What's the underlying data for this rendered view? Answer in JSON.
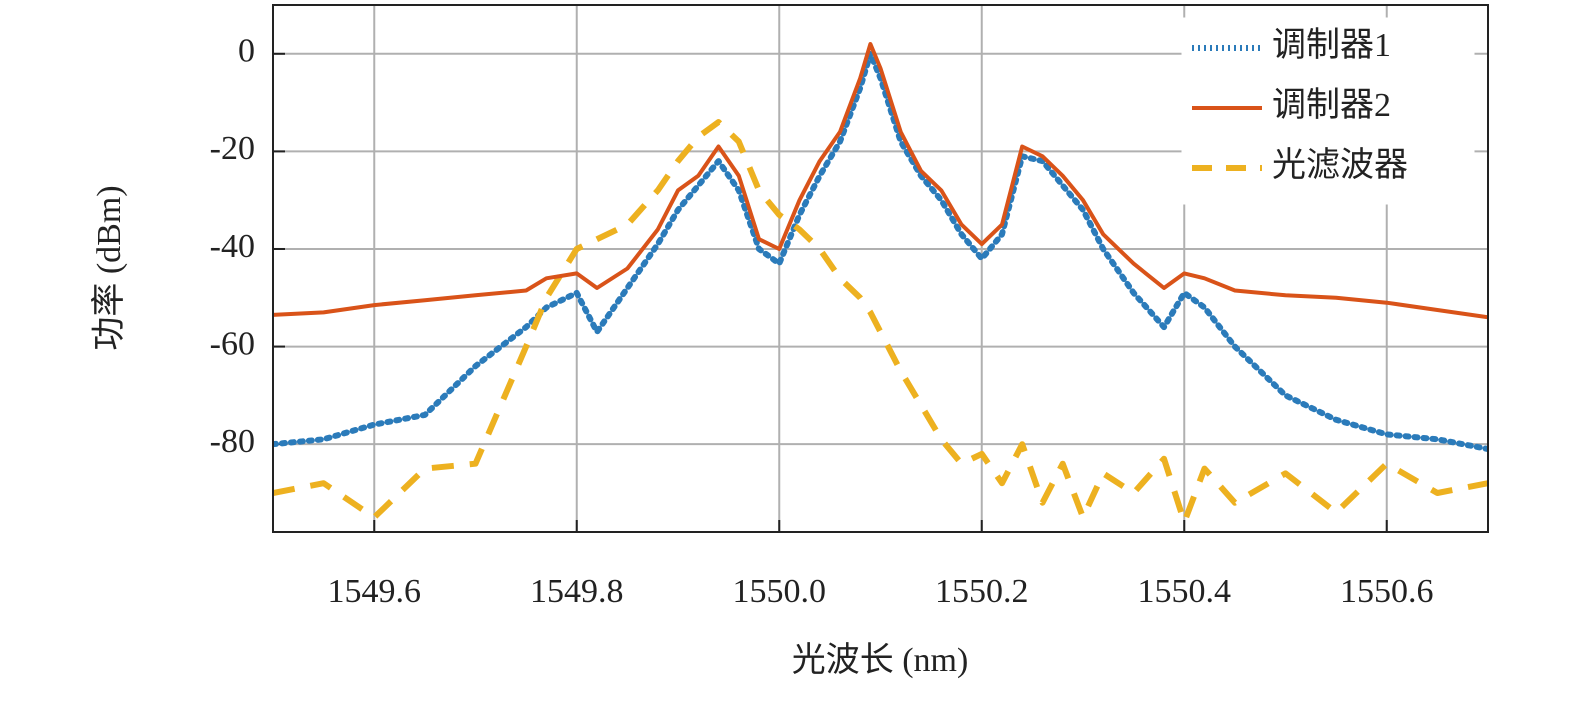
{
  "chart_data": {
    "type": "line",
    "x_label": "光波长 (nm)",
    "y_label": "功率 (dBm)",
    "x": [
      1549.5,
      1549.55,
      1549.6,
      1549.65,
      1549.7,
      1549.75,
      1549.77,
      1549.8,
      1549.82,
      1549.85,
      1549.88,
      1549.9,
      1549.92,
      1549.94,
      1549.96,
      1549.98,
      1550.0,
      1550.02,
      1550.04,
      1550.06,
      1550.08,
      1550.09,
      1550.1,
      1550.12,
      1550.14,
      1550.16,
      1550.18,
      1550.2,
      1550.22,
      1550.24,
      1550.26,
      1550.28,
      1550.3,
      1550.32,
      1550.35,
      1550.38,
      1550.4,
      1550.42,
      1550.45,
      1550.5,
      1550.55,
      1550.6,
      1550.65,
      1550.7
    ],
    "series": [
      {
        "name": "调制器1",
        "color": "#2b7bba",
        "style": "dotted",
        "values": [
          -80,
          -79,
          -76,
          -74,
          -64,
          -56,
          -52,
          -49,
          -57,
          -48,
          -39,
          -32,
          -27,
          -22,
          -28,
          -40,
          -43,
          -33,
          -25,
          -18,
          -7,
          0,
          -5,
          -18,
          -25,
          -30,
          -37,
          -42,
          -37,
          -21,
          -22,
          -27,
          -32,
          -40,
          -49,
          -56,
          -49,
          -52,
          -60,
          -70,
          -75,
          -78,
          -79,
          -81
        ]
      },
      {
        "name": "调制器2",
        "color": "#d95319",
        "style": "solid",
        "values": [
          -53.5,
          -53,
          -51.5,
          -50.5,
          -49.5,
          -48.5,
          -46,
          -45,
          -48,
          -44,
          -36,
          -28,
          -25,
          -19,
          -25,
          -38,
          -40,
          -30,
          -22,
          -16,
          -5,
          2,
          -3,
          -16,
          -24,
          -28,
          -35,
          -39,
          -35,
          -19,
          -21,
          -25,
          -30,
          -37,
          -43,
          -48,
          -45,
          -46,
          -48.5,
          -49.5,
          -50,
          -51,
          -52.5,
          -54
        ]
      },
      {
        "name": "光滤波器",
        "color": "#edb120",
        "style": "dashed",
        "values": [
          -90,
          -88,
          -95,
          -85,
          -84,
          -60,
          -50,
          -40,
          -38,
          -35,
          -28,
          -22,
          -17,
          -14,
          -18,
          -28,
          -33,
          -36,
          -40,
          -46,
          -50,
          -53,
          -57,
          -65,
          -72,
          -79,
          -84,
          -82,
          -88,
          -80,
          -92,
          -84,
          -95,
          -86,
          -90,
          -83,
          -96,
          -85,
          -92,
          -86,
          -94,
          -84,
          -90,
          -88
        ]
      }
    ],
    "xlim": [
      1549.5,
      1550.7
    ],
    "xticks": [
      1549.6,
      1549.8,
      {
        "value": 1550.0,
        "label": "1550.0"
      },
      1550.2,
      1550.4,
      1550.6
    ],
    "ylim": [
      -98,
      10
    ],
    "yticks": [
      0,
      -20,
      -40,
      -60,
      -80
    ],
    "grid": true,
    "legend": "upper right"
  }
}
